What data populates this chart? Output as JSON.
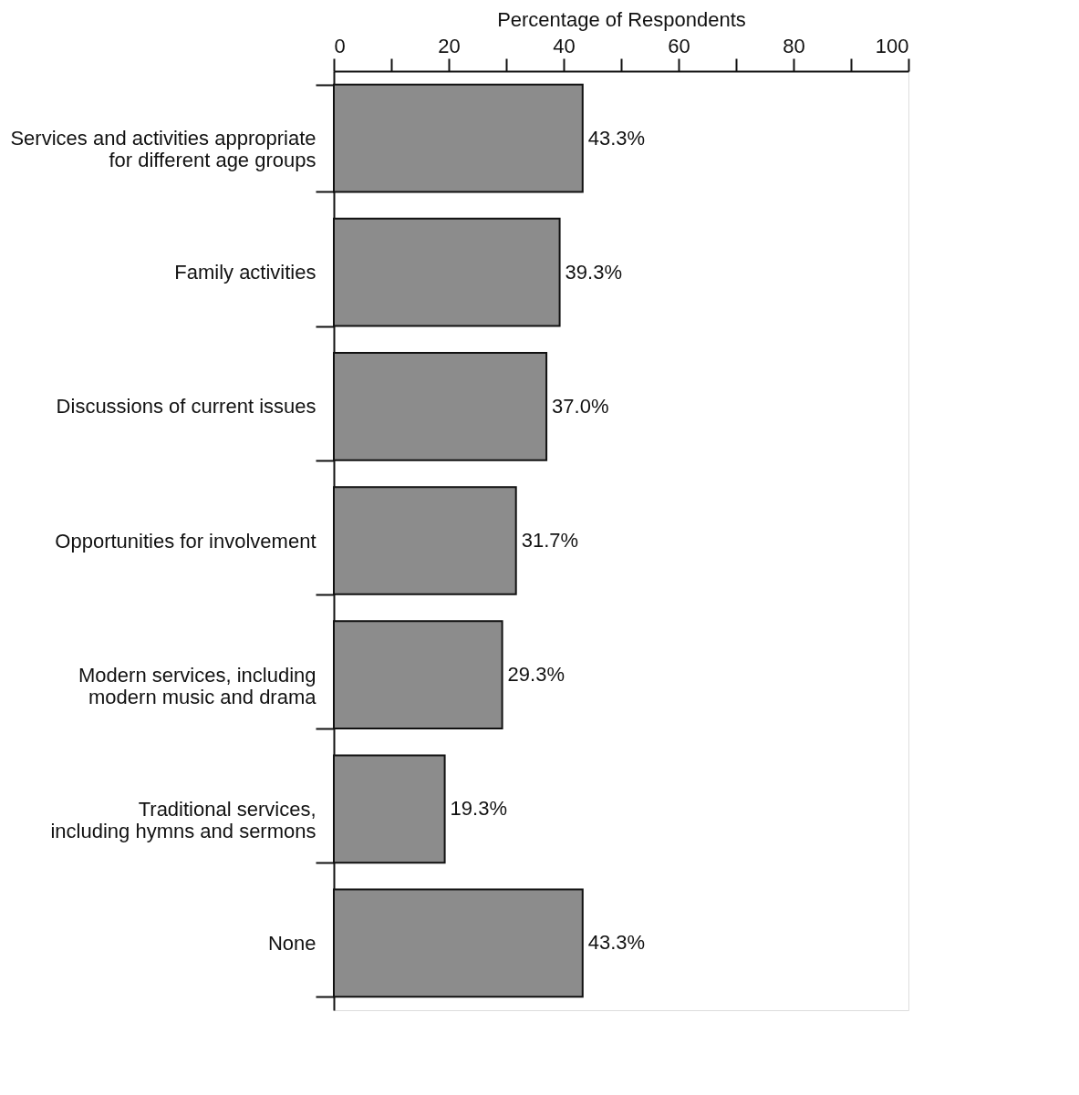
{
  "chart_data": {
    "type": "bar",
    "orientation": "horizontal",
    "xlabel": "Percentage of Respondents",
    "categories": [
      "Services and activities appropriate for different age groups",
      "Family activities",
      "Discussions of current issues",
      "Opportunities for involvement",
      "Modern services, including modern music and drama",
      "Traditional services, including hymns and sermons",
      "None"
    ],
    "values": [
      43.3,
      39.3,
      37.0,
      31.7,
      29.3,
      19.3,
      43.3
    ],
    "value_labels": [
      "43.3%",
      "39.3%",
      "37.0%",
      "31.7%",
      "29.3%",
      "19.3%",
      "43.3%"
    ],
    "color": "#8c8c8c",
    "xlim": [
      0,
      100
    ],
    "xticks": [
      0,
      {
        "value": 10,
        "label": null
      },
      20,
      {
        "value": 30,
        "label": null
      },
      40,
      {
        "value": 50,
        "label": null
      },
      60,
      {
        "value": 70,
        "label": null
      },
      80,
      {
        "value": 90,
        "label": null
      },
      100
    ],
    "grid": false
  }
}
